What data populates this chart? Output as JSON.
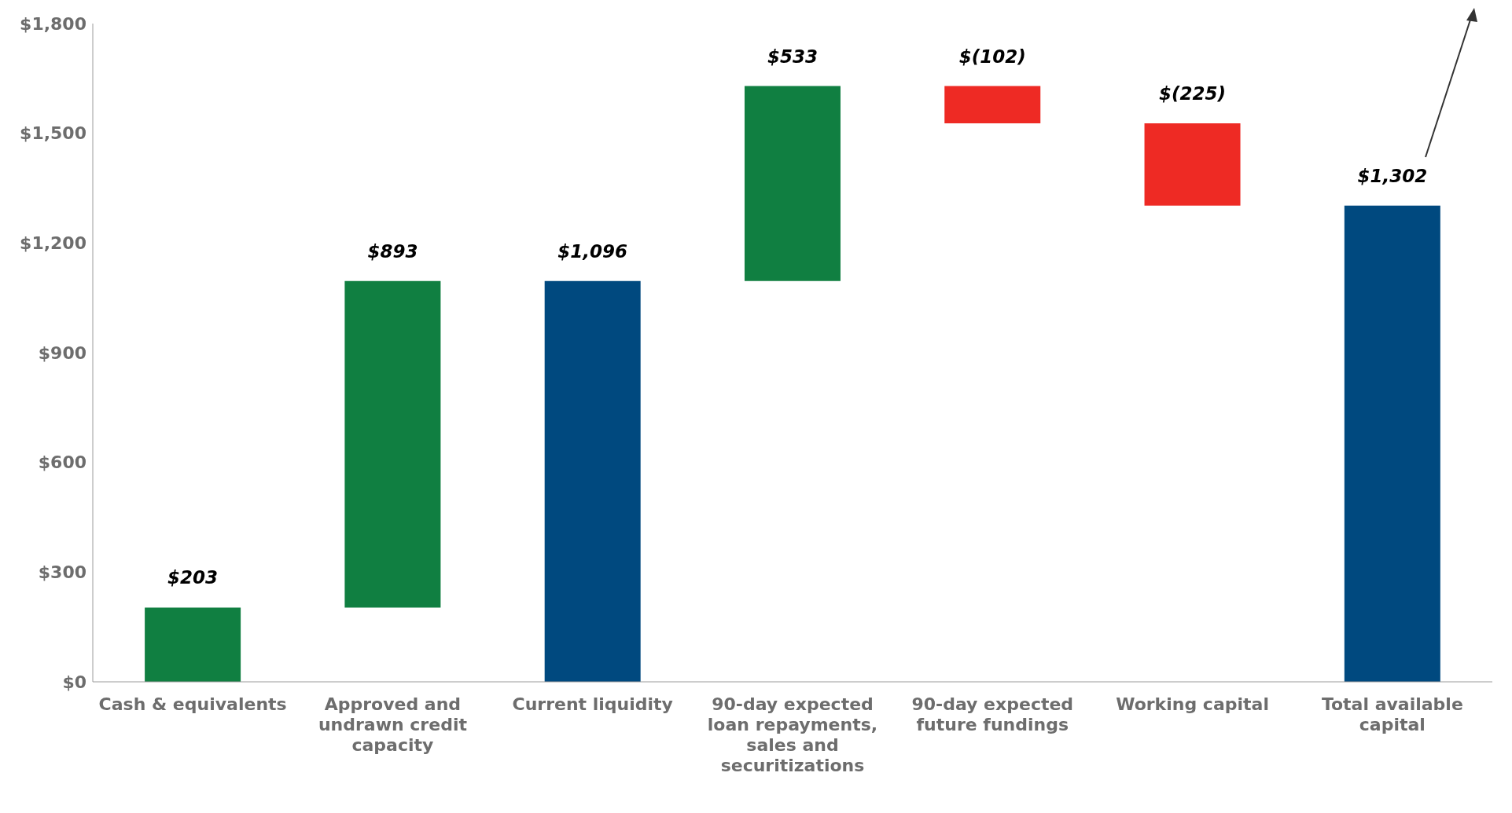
{
  "chart_data": {
    "type": "bar",
    "categories": [
      "Cash & equivalents",
      "Approved and undrawn credit capacity",
      "Current liquidity",
      "90-day expected loan repayments, sales and securitizations",
      "90-day expected future fundings",
      "Working capital",
      "Total available capital"
    ],
    "values": [
      203,
      893,
      1096,
      533,
      -102,
      -225,
      1302
    ],
    "base": [
      0,
      203,
      0,
      1096,
      1629,
      1527,
      0
    ],
    "colors": [
      "#107f41",
      "#107f41",
      "#00497f",
      "#107f41",
      "#ee2a24",
      "#ee2a24",
      "#00497f"
    ],
    "value_labels": [
      "$203",
      "$893",
      "$1,096",
      "$533",
      "$(102)",
      "$(225)",
      "$1,302"
    ],
    "ylim": [
      0,
      1800
    ],
    "yticks": [
      {
        "value": 0,
        "label": "$0"
      },
      {
        "value": 300,
        "label": "$300"
      },
      {
        "value": 600,
        "label": "$600"
      },
      {
        "value": 900,
        "label": "$900"
      },
      {
        "value": 1200,
        "label": "$1,200"
      },
      {
        "value": 1500,
        "label": "$1,500"
      },
      {
        "value": 1800,
        "label": "$1,800"
      }
    ],
    "grid": false,
    "legend": false
  }
}
